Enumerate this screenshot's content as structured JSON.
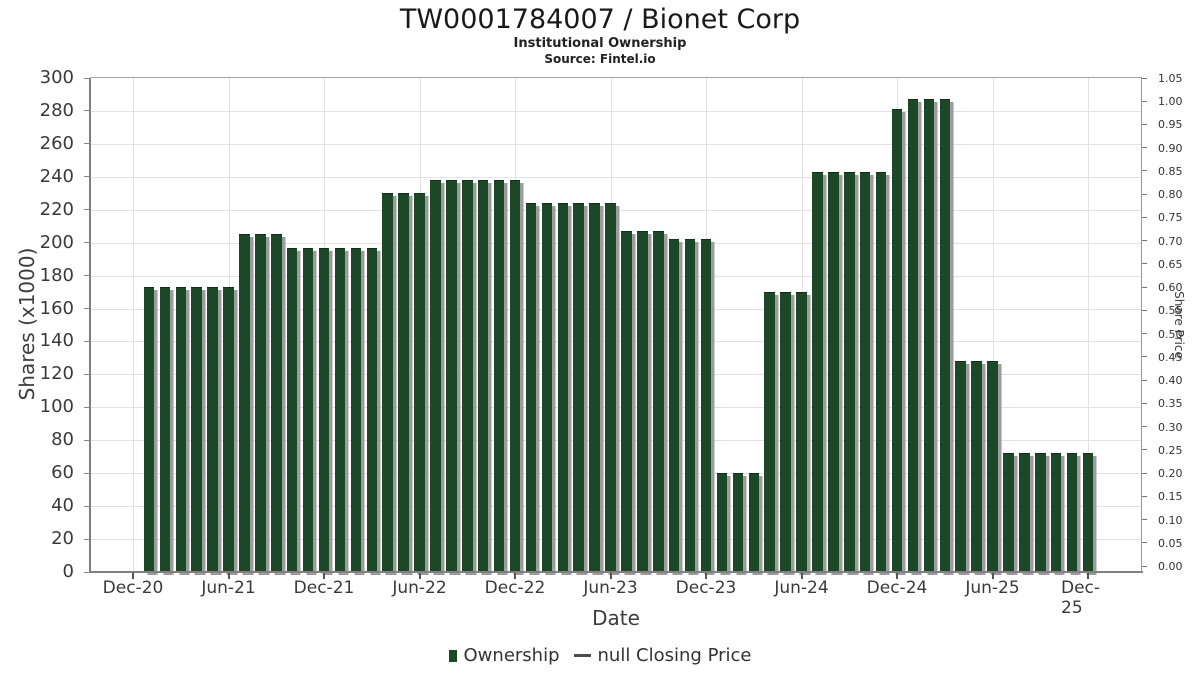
{
  "chart_data": {
    "type": "bar",
    "title": "TW0001784007 / Bionet Corp",
    "subtitle": "Institutional Ownership",
    "source": "Source: Fintel.io",
    "xlabel": "Date",
    "ylabel_left": "Shares (x1000)",
    "ylabel_right": "Share Price",
    "ylim_left": [
      0,
      300
    ],
    "ylim_right": [
      0,
      1.05
    ],
    "grid": true,
    "legend_position": "bottom",
    "bar_color": "#1c4827",
    "bar_shadow_color": "#9c9c9c",
    "y_ticks_left": [
      0,
      20,
      40,
      60,
      80,
      100,
      120,
      140,
      160,
      180,
      200,
      220,
      240,
      260,
      280,
      300
    ],
    "y_ticks_right": [
      "0.00",
      "0.05",
      "0.10",
      "0.15",
      "0.20",
      "0.25",
      "0.30",
      "0.35",
      "0.40",
      "0.45",
      "0.50",
      "0.55",
      "0.60",
      "0.65",
      "0.70",
      "0.75",
      "0.80",
      "0.85",
      "0.90",
      "0.95",
      "1.00",
      "1.05"
    ],
    "x_tick_labels": [
      "Dec-20",
      "Jun-21",
      "Dec-21",
      "Jun-22",
      "Dec-22",
      "Jun-23",
      "Dec-23",
      "Jun-24",
      "Dec-24",
      "Jun-25",
      "Dec-25"
    ],
    "months": [
      "Jan-21",
      "Feb-21",
      "Mar-21",
      "Apr-21",
      "May-21",
      "Jun-21",
      "Jul-21",
      "Aug-21",
      "Sep-21",
      "Oct-21",
      "Nov-21",
      "Dec-21",
      "Jan-22",
      "Feb-22",
      "Mar-22",
      "Apr-22",
      "May-22",
      "Jun-22",
      "Jul-22",
      "Aug-22",
      "Sep-22",
      "Oct-22",
      "Nov-22",
      "Dec-22",
      "Jan-23",
      "Feb-23",
      "Mar-23",
      "Apr-23",
      "May-23",
      "Jun-23",
      "Jul-23",
      "Aug-23",
      "Sep-23",
      "Oct-23",
      "Nov-23",
      "Dec-23",
      "Jan-24",
      "Feb-24",
      "Mar-24",
      "Apr-24",
      "May-24",
      "Jun-24",
      "Jul-24",
      "Aug-24",
      "Sep-24",
      "Oct-24",
      "Nov-24",
      "Dec-24",
      "Jan-25",
      "Feb-25",
      "Mar-25",
      "Apr-25",
      "May-25",
      "Jun-25",
      "Jul-25",
      "Aug-25",
      "Sep-25",
      "Oct-25",
      "Nov-25",
      "Dec-25"
    ],
    "values": [
      173,
      173,
      173,
      173,
      173,
      173,
      205,
      205,
      205,
      197,
      197,
      197,
      197,
      197,
      197,
      230,
      230,
      230,
      238,
      238,
      238,
      238,
      238,
      238,
      224,
      224,
      224,
      224,
      224,
      224,
      207,
      207,
      207,
      202,
      202,
      202,
      60,
      60,
      60,
      170,
      170,
      170,
      243,
      243,
      243,
      243,
      243,
      281,
      287,
      287,
      287,
      128,
      128,
      128,
      72,
      72,
      72,
      72,
      72,
      72
    ],
    "legend": [
      {
        "label": "Ownership",
        "marker": "square"
      },
      {
        "label": "null Closing Price",
        "marker": "line"
      }
    ]
  }
}
